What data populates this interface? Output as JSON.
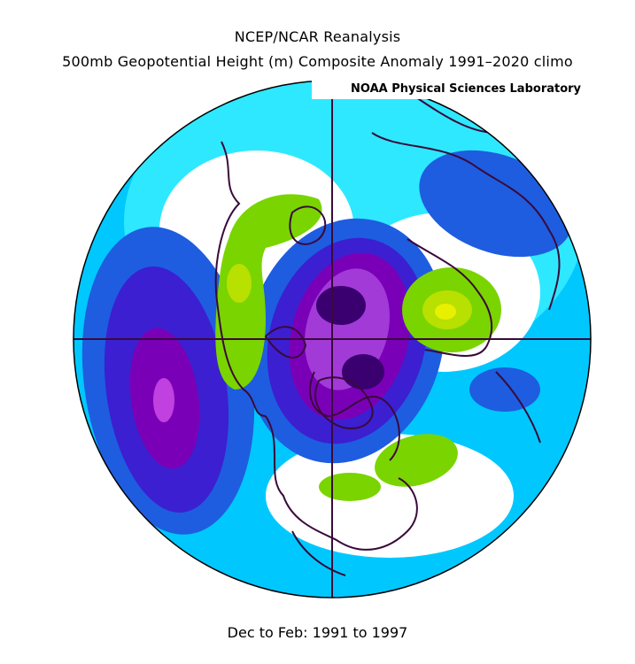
{
  "title": {
    "line1": "NCEP/NCAR Reanalysis",
    "line2": "500mb Geopotential Height (m) Composite Anomaly 1991–2020 climo"
  },
  "credit": "NOAA Physical Sciences Laboratory",
  "footer": "Dec to Feb: 1991 to 1997",
  "map": {
    "projection": "north-polar-stereographic",
    "field": "500mb geopotential height anomaly",
    "palette": {
      "strong_negative": "#3b0070",
      "negative_5": "#7a00b8",
      "negative_4": "#a23ad8",
      "negative_3": "#3c1fd0",
      "negative_2": "#1e5de0",
      "negative_1": "#00c8ff",
      "neutral_low": "#2ee8ff",
      "neutral": "#ffffff",
      "positive_1": "#7ad400",
      "positive_2": "#b8e000",
      "positive_3": "#e8f000"
    },
    "lines_color": "#3a0a3a"
  }
}
